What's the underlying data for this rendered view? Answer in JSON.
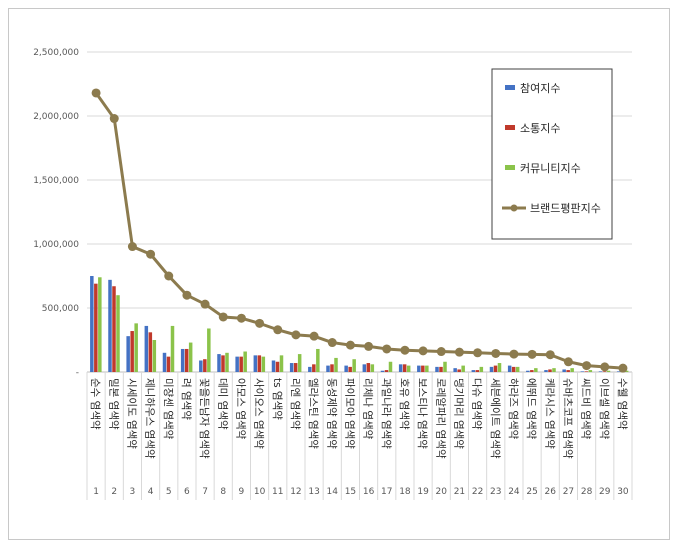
{
  "chart_data": {
    "type": "bar",
    "categories": [
      "순수 염색약",
      "밀본 염색약",
      "시세이도 염색약",
      "제니하우스 염색약",
      "미쟝센 염색약",
      "려 염색약",
      "꽃을든남자 염색약",
      "데미 염색약",
      "아모스 염색약",
      "사이오스 염색약",
      "ts 염색약",
      "리엔 염색약",
      "엘라스틴 염색약",
      "동성제약 염색약",
      "파이모아 염색약",
      "리체나 염색약",
      "과일나라 염색약",
      "호유 염색약",
      "보스티나 염색약",
      "로레알파리 염색약",
      "댕기머리 염색약",
      "다슈 염색약",
      "세븐에이트 염색약",
      "하라즈 염색약",
      "에뛰드 염색약",
      "케라시스 염색약",
      "슈바츠코프 염색약",
      "씨드비 염색약",
      "이브셀 염색약",
      "수웰 염색약"
    ],
    "ranks": [
      "1",
      "2",
      "3",
      "4",
      "5",
      "6",
      "7",
      "8",
      "9",
      "10",
      "11",
      "12",
      "13",
      "14",
      "15",
      "16",
      "17",
      "18",
      "19",
      "20",
      "21",
      "22",
      "23",
      "24",
      "25",
      "26",
      "27",
      "28",
      "29",
      "30"
    ],
    "series": [
      {
        "name": "참여지수",
        "type": "bar",
        "color": "#4472c4",
        "values": [
          750000,
          720000,
          280000,
          360000,
          150000,
          180000,
          90000,
          140000,
          120000,
          130000,
          90000,
          70000,
          40000,
          50000,
          50000,
          60000,
          10000,
          60000,
          50000,
          40000,
          30000,
          15000,
          40000,
          50000,
          10000,
          15000,
          20000,
          5000,
          5000,
          5000
        ]
      },
      {
        "name": "소통지수",
        "type": "bar",
        "color": "#c0392b",
        "values": [
          690000,
          670000,
          320000,
          310000,
          120000,
          180000,
          100000,
          130000,
          120000,
          130000,
          80000,
          70000,
          60000,
          60000,
          40000,
          70000,
          15000,
          60000,
          50000,
          40000,
          20000,
          15000,
          50000,
          40000,
          15000,
          20000,
          15000,
          5000,
          5000,
          5000
        ]
      },
      {
        "name": "커뮤니티지수",
        "type": "bar",
        "color": "#8bc34a",
        "values": [
          740000,
          600000,
          380000,
          250000,
          360000,
          230000,
          340000,
          150000,
          160000,
          120000,
          130000,
          140000,
          180000,
          110000,
          100000,
          60000,
          80000,
          50000,
          50000,
          80000,
          50000,
          40000,
          70000,
          40000,
          30000,
          30000,
          30000,
          15000,
          10000,
          10000
        ]
      },
      {
        "name": "브랜드평판지수",
        "type": "line",
        "color": "#8c7b4e",
        "values": [
          2180000,
          1980000,
          980000,
          920000,
          750000,
          600000,
          530000,
          430000,
          420000,
          380000,
          330000,
          290000,
          280000,
          230000,
          210000,
          200000,
          180000,
          170000,
          165000,
          160000,
          155000,
          150000,
          145000,
          140000,
          138000,
          135000,
          80000,
          50000,
          40000,
          30000
        ]
      }
    ],
    "ylim": [
      0,
      2500000
    ],
    "yticks": [
      "-",
      "500,000",
      "1,000,000",
      "1,500,000",
      "2,000,000",
      "2,500,000"
    ],
    "ytick_values": [
      0,
      500000,
      1000000,
      1500000,
      2000000,
      2500000
    ],
    "grid": true,
    "legend_position": "top-right"
  }
}
